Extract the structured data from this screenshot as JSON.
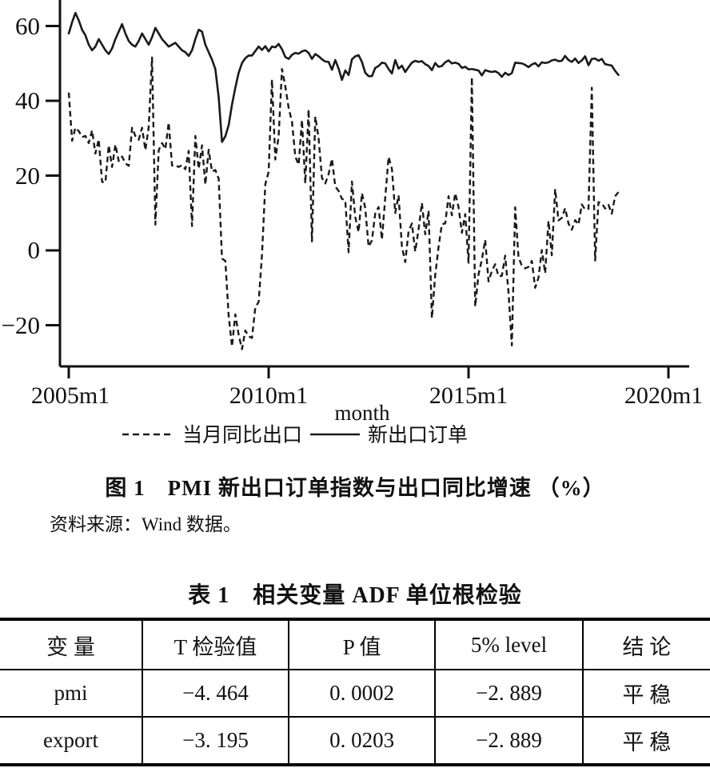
{
  "figure": {
    "caption": "图 1　PMI 新出口订单指数与出口同比增速 （%）",
    "source": "资料来源：Wind 数据。"
  },
  "chart_data": {
    "type": "line",
    "title": "图1 PMI新出口订单指数与出口同比增速（%）",
    "xlabel": "month",
    "ylabel": "",
    "x_start": "2005m1",
    "x_end": "2018m10",
    "x_frequency": "monthly",
    "ylim": [
      -30,
      66
    ],
    "yticks": [
      60,
      40,
      20,
      0,
      -20
    ],
    "ytick_labels": [
      "60",
      "40",
      "20",
      "0",
      "−20"
    ],
    "xtick_labels": [
      "2005m1",
      "2010m1",
      "2015m1",
      "2020m1"
    ],
    "grid": false,
    "legend_position": "bottom",
    "series": [
      {
        "name": "当月同比出口",
        "style": "dashed",
        "values": [
          42.2,
          29.3,
          32.8,
          31.9,
          30.3,
          30.6,
          28.7,
          32.1,
          25.9,
          29.7,
          18.3,
          18.2,
          28.1,
          22.3,
          28.3,
          23.9,
          25.1,
          23.3,
          22.6,
          32.8,
          30.6,
          29.6,
          32.8,
          26.8,
          33.0,
          51.6,
          6.9,
          26.8,
          28.7,
          27.1,
          34.2,
          22.7,
          22.8,
          22.3,
          22.8,
          21.7,
          26.6,
          6.5,
          30.6,
          21.8,
          28.1,
          17.6,
          26.9,
          21.1,
          21.5,
          19.2,
          -2.2,
          -2.8,
          -17.5,
          -25.7,
          -17.1,
          -22.6,
          -26.4,
          -21.4,
          -23.0,
          -23.4,
          -15.2,
          -13.8,
          -1.2,
          17.7,
          21.0,
          45.7,
          24.3,
          30.5,
          48.5,
          43.9,
          38.1,
          34.4,
          25.1,
          22.9,
          34.9,
          17.9,
          37.7,
          2.4,
          35.8,
          29.9,
          19.4,
          17.9,
          20.4,
          24.5,
          17.1,
          15.9,
          13.8,
          13.4,
          -0.5,
          18.4,
          8.9,
          4.9,
          15.3,
          11.3,
          1.0,
          2.7,
          9.9,
          11.6,
          2.9,
          14.1,
          25.0,
          21.8,
          10.0,
          14.7,
          1.0,
          -3.1,
          5.1,
          7.2,
          -0.3,
          5.6,
          12.7,
          4.3,
          10.6,
          -18.1,
          -6.6,
          0.9,
          7.0,
          7.2,
          14.5,
          9.4,
          15.3,
          11.6,
          4.7,
          9.7,
          -3.3,
          46.3,
          -15.0,
          -6.4,
          -2.5,
          2.8,
          -8.3,
          -5.5,
          -3.7,
          -6.9,
          -6.8,
          -1.4,
          -11.2,
          -25.4,
          11.5,
          -1.8,
          -4.1,
          -4.8,
          -4.4,
          -2.8,
          -10.0,
          -7.3,
          0.1,
          -6.1,
          7.9,
          -1.3,
          16.4,
          8.0,
          8.7,
          11.3,
          7.2,
          5.5,
          8.1,
          6.9,
          12.3,
          10.9,
          11.1,
          43.5,
          -2.7,
          12.9,
          12.6,
          11.2,
          12.2,
          9.8,
          14.5,
          15.6
        ]
      },
      {
        "name": "新出口订单",
        "style": "solid",
        "values": [
          58.0,
          61.0,
          63.5,
          61.5,
          59.0,
          57.5,
          55.0,
          53.5,
          54.5,
          56.5,
          55.0,
          53.5,
          52.5,
          54.0,
          56.5,
          58.5,
          60.5,
          58.0,
          56.0,
          55.0,
          54.5,
          56.0,
          58.0,
          56.5,
          55.0,
          57.0,
          59.5,
          58.0,
          56.5,
          55.5,
          54.5,
          55.0,
          55.5,
          54.5,
          53.5,
          53.0,
          52.0,
          53.5,
          56.5,
          59.0,
          58.5,
          55.0,
          53.0,
          51.0,
          48.5,
          41.0,
          29.0,
          30.5,
          33.5,
          39.0,
          43.5,
          47.5,
          50.1,
          51.4,
          52.1,
          52.1,
          53.3,
          54.5,
          53.6,
          54.6,
          53.2,
          54.5,
          54.3,
          55.2,
          53.8,
          51.7,
          51.2,
          52.3,
          52.8,
          52.6,
          53.2,
          53.5,
          52.8,
          51.2,
          52.5,
          51.9,
          51.1,
          50.5,
          50.4,
          48.3,
          50.9,
          48.6,
          45.6,
          48.1,
          46.9,
          51.1,
          51.9,
          52.2,
          50.4,
          47.5,
          46.6,
          46.6,
          48.8,
          49.3,
          50.2,
          50.0,
          48.5,
          47.3,
          50.9,
          48.6,
          49.4,
          47.7,
          49.0,
          50.2,
          50.7,
          50.4,
          50.6,
          49.8,
          49.3,
          48.2,
          50.1,
          49.1,
          49.3,
          50.3,
          50.8,
          50.0,
          50.2,
          49.9,
          48.8,
          49.1,
          48.4,
          48.5,
          48.3,
          48.1,
          46.8,
          48.2,
          47.9,
          47.7,
          47.9,
          47.4,
          46.4,
          47.5,
          46.9,
          47.4,
          50.2,
          50.1,
          50.0,
          49.6,
          49.0,
          49.7,
          50.1,
          49.2,
          50.3,
          50.1,
          50.3,
          50.8,
          51.0,
          50.6,
          50.7,
          52.0,
          50.9,
          50.4,
          51.3,
          50.1,
          50.8,
          51.9,
          49.5,
          51.2,
          51.3,
          50.7,
          51.2,
          49.8,
          49.6,
          49.4,
          48.0,
          46.9
        ]
      }
    ]
  },
  "table": {
    "title": "表 1　相关变量 ADF 单位根检验",
    "headers": [
      "变 量",
      "T 检验值",
      "P 值",
      "5% level",
      "结 论"
    ],
    "rows": [
      [
        "pmi",
        "−4. 464",
        "0. 0002",
        "−2. 889",
        "平 稳"
      ],
      [
        "export",
        "−3. 195",
        "0. 0203",
        "−2. 889",
        "平 稳"
      ]
    ]
  }
}
